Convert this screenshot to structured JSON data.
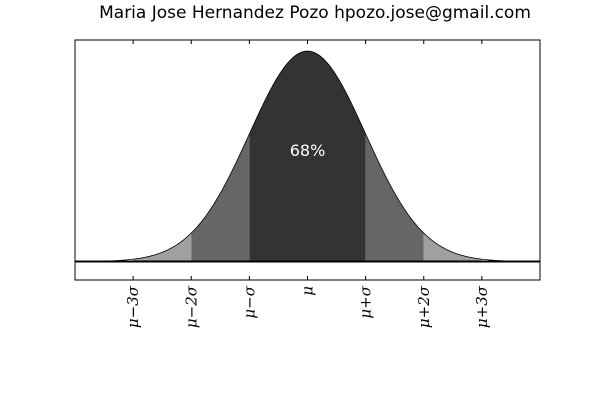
{
  "chart_data": {
    "type": "area",
    "title": "Maria Jose Hernandez Pozo hpozo.jose@gmail.com",
    "xlabel": "",
    "ylabel": "",
    "distribution": "normal",
    "mu": 0,
    "sigma": 1,
    "xlim": [
      -4,
      4
    ],
    "ylim": [
      -0.035,
      0.42
    ],
    "grid": false,
    "legend": "none",
    "x_ticks": [
      -3,
      -2,
      -1,
      0,
      1,
      2,
      3
    ],
    "x_tick_labels": [
      "μ−3σ",
      "μ−2σ",
      "μ−σ",
      "μ",
      "μ+σ",
      "μ+2σ",
      "μ+3σ"
    ],
    "regions": [
      {
        "from": -3,
        "to": -2,
        "color": "#a0a0a0"
      },
      {
        "from": -2,
        "to": -1,
        "color": "#666666"
      },
      {
        "from": -1,
        "to": 1,
        "color": "#333333"
      },
      {
        "from": 1,
        "to": 2,
        "color": "#666666"
      },
      {
        "from": 2,
        "to": 3,
        "color": "#a0a0a0"
      }
    ],
    "annotation": {
      "text": "68%",
      "x": 0,
      "y": 0.2,
      "color": "#ffffff"
    },
    "curve_color": "#000000",
    "baseline_color": "#000000"
  }
}
